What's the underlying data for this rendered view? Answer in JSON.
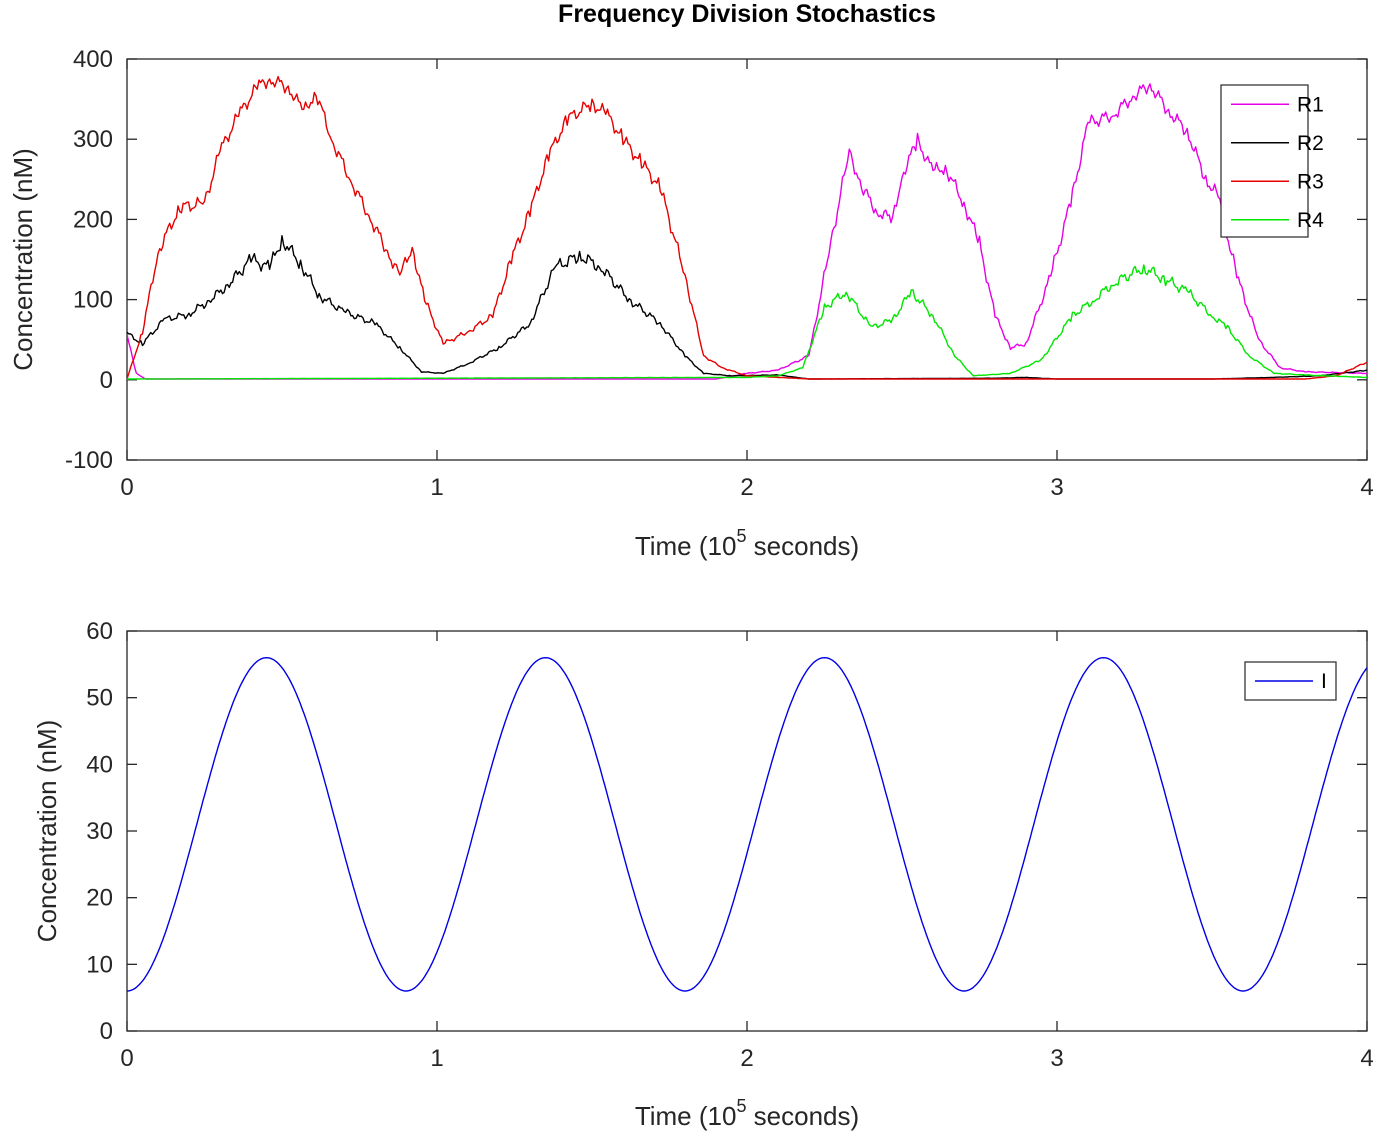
{
  "chart_data": [
    {
      "type": "line",
      "title": "Frequency Division Stochastics",
      "xlabel": {
        "prefix": "Time (10",
        "superscript": "5",
        "suffix": " seconds)"
      },
      "ylabel": "Concentration (nM)",
      "xlim": [
        0,
        4
      ],
      "ylim": [
        -100,
        400
      ],
      "xticks": [
        "0",
        "1",
        "2",
        "3",
        "4"
      ],
      "yticks": [
        "-100",
        "0",
        "100",
        "200",
        "300",
        "400"
      ],
      "grid": false,
      "legend": "top-right",
      "series": [
        {
          "name": "R1",
          "color": "#e600e6",
          "points": [
            [
              0,
              55
            ],
            [
              0.03,
              8
            ],
            [
              0.06,
              1
            ],
            [
              1.9,
              1
            ],
            [
              2.0,
              8
            ],
            [
              2.1,
              12
            ],
            [
              2.2,
              30
            ],
            [
              2.27,
              170
            ],
            [
              2.33,
              285
            ],
            [
              2.37,
              240
            ],
            [
              2.42,
              210
            ],
            [
              2.47,
              200
            ],
            [
              2.5,
              255
            ],
            [
              2.55,
              298
            ],
            [
              2.6,
              260
            ],
            [
              2.64,
              265
            ],
            [
              2.7,
              220
            ],
            [
              2.75,
              170
            ],
            [
              2.8,
              80
            ],
            [
              2.85,
              40
            ],
            [
              2.9,
              45
            ],
            [
              2.98,
              130
            ],
            [
              3.05,
              230
            ],
            [
              3.1,
              320
            ],
            [
              3.18,
              330
            ],
            [
              3.25,
              355
            ],
            [
              3.3,
              368
            ],
            [
              3.36,
              335
            ],
            [
              3.42,
              310
            ],
            [
              3.48,
              250
            ],
            [
              3.52,
              230
            ],
            [
              3.58,
              130
            ],
            [
              3.65,
              50
            ],
            [
              3.72,
              15
            ],
            [
              3.8,
              10
            ],
            [
              4.0,
              8
            ]
          ]
        },
        {
          "name": "R2",
          "color": "#000000",
          "points": [
            [
              0,
              58
            ],
            [
              0.05,
              45
            ],
            [
              0.12,
              75
            ],
            [
              0.2,
              82
            ],
            [
              0.27,
              100
            ],
            [
              0.33,
              120
            ],
            [
              0.4,
              150
            ],
            [
              0.46,
              140
            ],
            [
              0.5,
              175
            ],
            [
              0.56,
              145
            ],
            [
              0.62,
              105
            ],
            [
              0.7,
              85
            ],
            [
              0.8,
              70
            ],
            [
              0.88,
              40
            ],
            [
              0.95,
              10
            ],
            [
              1.02,
              8
            ],
            [
              1.1,
              20
            ],
            [
              1.2,
              40
            ],
            [
              1.3,
              70
            ],
            [
              1.38,
              140
            ],
            [
              1.46,
              155
            ],
            [
              1.53,
              140
            ],
            [
              1.62,
              100
            ],
            [
              1.72,
              70
            ],
            [
              1.8,
              30
            ],
            [
              1.86,
              8
            ],
            [
              1.95,
              5
            ],
            [
              2.1,
              6
            ],
            [
              2.2,
              1
            ],
            [
              2.8,
              2
            ],
            [
              2.9,
              3
            ],
            [
              3.0,
              1
            ],
            [
              3.5,
              1
            ],
            [
              3.7,
              3
            ],
            [
              3.85,
              5
            ],
            [
              4.0,
              12
            ]
          ]
        },
        {
          "name": "R3",
          "color": "#e60000",
          "points": [
            [
              0,
              1
            ],
            [
              0.05,
              60
            ],
            [
              0.1,
              160
            ],
            [
              0.17,
              215
            ],
            [
              0.25,
              220
            ],
            [
              0.3,
              285
            ],
            [
              0.36,
              330
            ],
            [
              0.42,
              365
            ],
            [
              0.46,
              375
            ],
            [
              0.52,
              365
            ],
            [
              0.57,
              335
            ],
            [
              0.61,
              358
            ],
            [
              0.66,
              300
            ],
            [
              0.72,
              250
            ],
            [
              0.78,
              205
            ],
            [
              0.84,
              160
            ],
            [
              0.88,
              130
            ],
            [
              0.92,
              165
            ],
            [
              0.96,
              100
            ],
            [
              1.02,
              45
            ],
            [
              1.1,
              60
            ],
            [
              1.18,
              80
            ],
            [
              1.24,
              150
            ],
            [
              1.3,
              210
            ],
            [
              1.36,
              280
            ],
            [
              1.42,
              325
            ],
            [
              1.5,
              345
            ],
            [
              1.55,
              330
            ],
            [
              1.6,
              300
            ],
            [
              1.66,
              270
            ],
            [
              1.72,
              240
            ],
            [
              1.8,
              130
            ],
            [
              1.86,
              30
            ],
            [
              1.92,
              15
            ],
            [
              2.0,
              5
            ],
            [
              2.1,
              3
            ],
            [
              2.2,
              1
            ],
            [
              3.8,
              1
            ],
            [
              3.9,
              5
            ],
            [
              4.0,
              22
            ]
          ]
        },
        {
          "name": "R4",
          "color": "#00e600",
          "points": [
            [
              0,
              1
            ],
            [
              2.0,
              3
            ],
            [
              2.1,
              5
            ],
            [
              2.18,
              15
            ],
            [
              2.25,
              90
            ],
            [
              2.32,
              110
            ],
            [
              2.4,
              65
            ],
            [
              2.47,
              75
            ],
            [
              2.53,
              110
            ],
            [
              2.6,
              80
            ],
            [
              2.67,
              30
            ],
            [
              2.73,
              5
            ],
            [
              2.85,
              8
            ],
            [
              2.95,
              25
            ],
            [
              3.05,
              80
            ],
            [
              3.12,
              100
            ],
            [
              3.18,
              120
            ],
            [
              3.28,
              140
            ],
            [
              3.35,
              125
            ],
            [
              3.42,
              110
            ],
            [
              3.5,
              80
            ],
            [
              3.55,
              65
            ],
            [
              3.62,
              30
            ],
            [
              3.7,
              8
            ],
            [
              3.8,
              6
            ],
            [
              4.0,
              3
            ]
          ]
        }
      ]
    },
    {
      "type": "line",
      "title": "",
      "xlabel": {
        "prefix": "Time (10",
        "superscript": "5",
        "suffix": " seconds)"
      },
      "ylabel": "Concentration (nM)",
      "xlim": [
        0,
        4
      ],
      "ylim": [
        0,
        60
      ],
      "xticks": [
        "0",
        "1",
        "2",
        "3",
        "4"
      ],
      "yticks": [
        "0",
        "10",
        "20",
        "30",
        "40",
        "50",
        "60"
      ],
      "grid": false,
      "legend": "top-right",
      "series": [
        {
          "name": "I",
          "color": "#0000e6",
          "function": {
            "kind": "sinusoid",
            "mean": 31,
            "amplitude": 25,
            "period": 0.9,
            "min_at": 0
          }
        }
      ]
    }
  ]
}
